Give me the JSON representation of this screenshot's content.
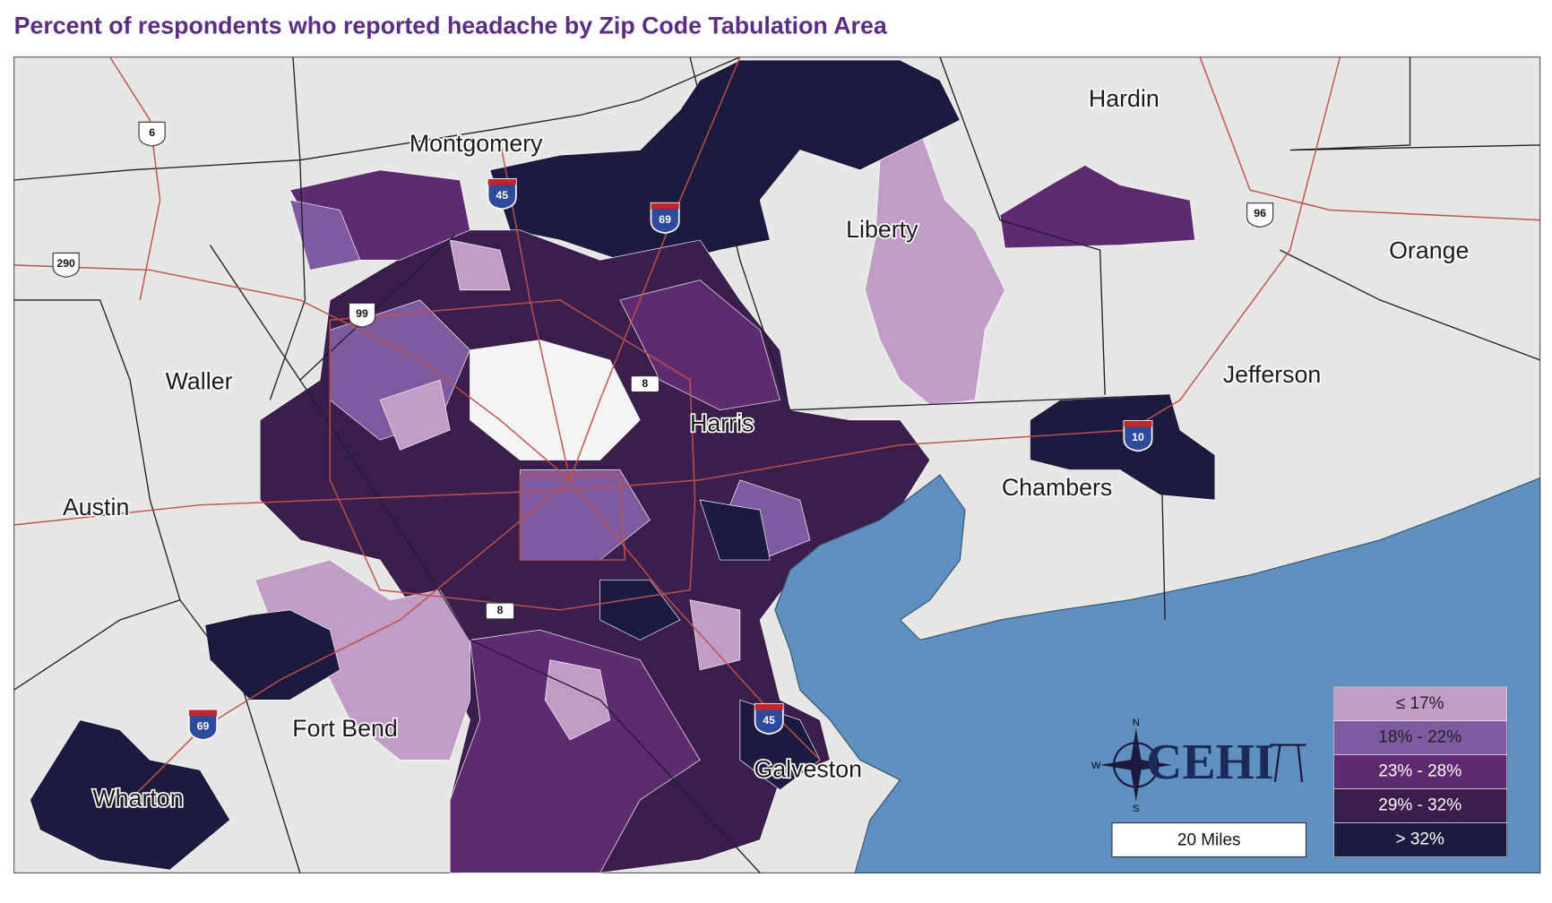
{
  "title": "Percent of respondents who reported headache by Zip Code Tabulation Area",
  "counties": [
    "Montgomery",
    "Hardin",
    "Liberty",
    "Orange",
    "Waller",
    "Jefferson",
    "Harris",
    "Chambers",
    "Austin",
    "Fort Bend",
    "Galveston",
    "Wharton"
  ],
  "highways": [
    "6",
    "290",
    "99",
    "45",
    "69",
    "8",
    "8",
    "10",
    "96",
    "69",
    "45"
  ],
  "legend": {
    "items": [
      {
        "label": "≤ 17%",
        "color": "#c09cc6"
      },
      {
        "label": "18% - 22%",
        "color": "#7e5b9f"
      },
      {
        "label": "23% - 28%",
        "color": "#5f2b70"
      },
      {
        "label": "29% - 32%",
        "color": "#3a1e4b"
      },
      {
        "label": "> 32%",
        "color": "#1c1a3f"
      }
    ]
  },
  "scale_bar": "20 Miles",
  "logo": "CEHI",
  "compass": [
    "N",
    "W",
    "S"
  ]
}
